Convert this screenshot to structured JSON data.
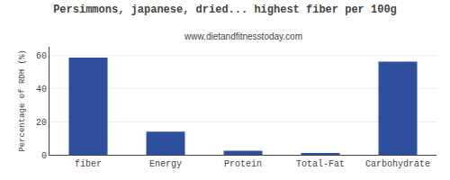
{
  "chart_data": {
    "type": "bar",
    "title": "Persimmons, japanese, dried... highest fiber per 100g",
    "subtitle": "www.dietandfitnesstoday.com",
    "categories": [
      "fiber",
      "Energy",
      "Protein",
      "Total-Fat",
      "Carbohydrate"
    ],
    "values": [
      58.5,
      14.0,
      2.5,
      1.0,
      56.0
    ],
    "color": "#2d4f9e",
    "ylabel": "Percentage of RDH (%)",
    "ylim": [
      0,
      65
    ],
    "yticks": [
      0,
      20,
      40,
      60
    ],
    "grid": true
  }
}
